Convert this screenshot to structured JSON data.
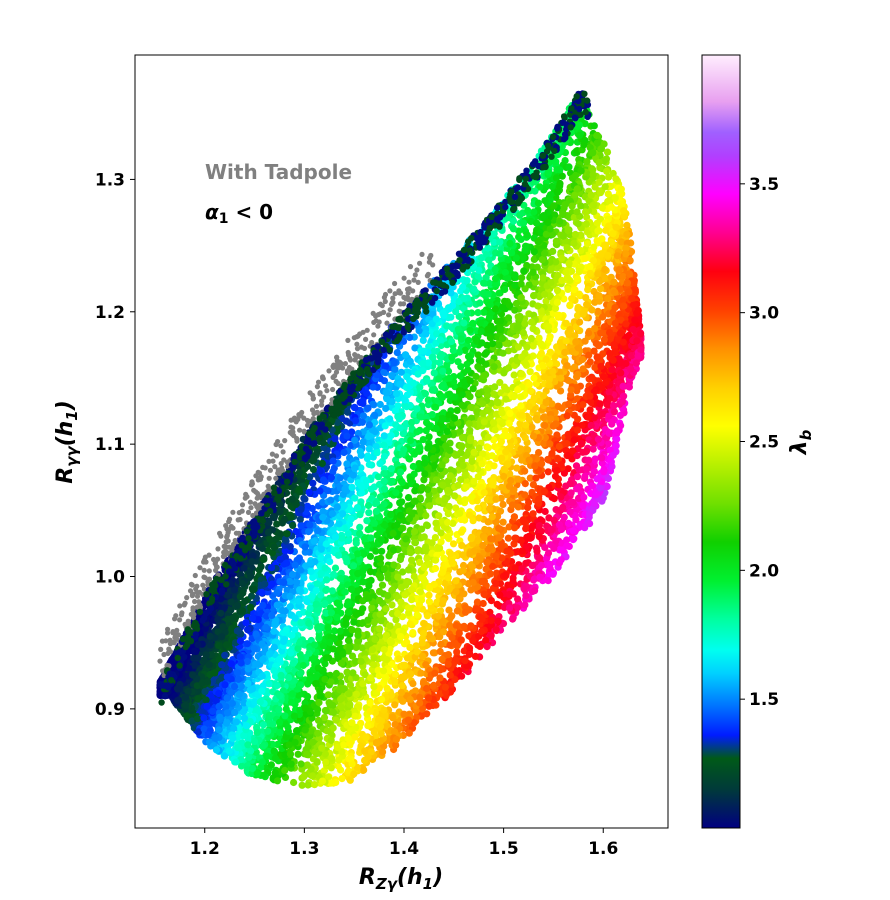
{
  "chart_data": {
    "type": "scatter",
    "x_label_main": "R",
    "x_label_sub": "Zγ",
    "x_label_tail": "(h",
    "x_label_tail_sub": "1",
    "x_label_close": ")",
    "y_label_main": "R",
    "y_label_sub": "γγ",
    "y_label_tail": "(h",
    "y_label_tail_sub": "1",
    "y_label_close": ")",
    "xlim": [
      1.13,
      1.665
    ],
    "ylim": [
      0.81,
      1.394
    ],
    "x_ticks": [
      "1.2",
      "1.3",
      "1.4",
      "1.5",
      "1.6"
    ],
    "y_ticks": [
      "0.9",
      "1.0",
      "1.1",
      "1.2",
      "1.3"
    ],
    "colorbar": {
      "label_main": "λ",
      "label_sub": "b",
      "range": [
        1.0,
        4.0
      ],
      "ticks": [
        "1.5",
        "2.0",
        "2.5",
        "3.0",
        "3.5"
      ],
      "colormap": "gist_ncar"
    },
    "annotations": {
      "tadpole": "With Tadpole",
      "alpha_main": "α",
      "alpha_sub": "1",
      "alpha_tail": " < 0"
    },
    "unconstrained_color": "#808080",
    "region": {
      "upper_edge": [
        [
          1.155,
          0.92
        ],
        [
          1.2,
          0.985
        ],
        [
          1.25,
          1.045
        ],
        [
          1.3,
          1.105
        ],
        [
          1.35,
          1.155
        ],
        [
          1.4,
          1.2
        ],
        [
          1.45,
          1.24
        ],
        [
          1.5,
          1.285
        ],
        [
          1.55,
          1.335
        ],
        [
          1.575,
          1.365
        ]
      ],
      "lower_edge": [
        [
          1.165,
          0.91
        ],
        [
          1.2,
          0.875
        ],
        [
          1.25,
          0.848
        ],
        [
          1.3,
          0.842
        ],
        [
          1.35,
          0.845
        ],
        [
          1.4,
          0.875
        ],
        [
          1.45,
          0.915
        ],
        [
          1.5,
          0.96
        ],
        [
          1.55,
          1.0
        ],
        [
          1.6,
          1.055
        ],
        [
          1.615,
          1.1
        ],
        [
          1.625,
          1.14
        ]
      ],
      "right_edge": [
        [
          1.575,
          1.365
        ],
        [
          1.6,
          1.33
        ],
        [
          1.62,
          1.29
        ],
        [
          1.63,
          1.24
        ],
        [
          1.638,
          1.18
        ],
        [
          1.635,
          1.14
        ],
        [
          1.625,
          1.14
        ]
      ]
    }
  }
}
